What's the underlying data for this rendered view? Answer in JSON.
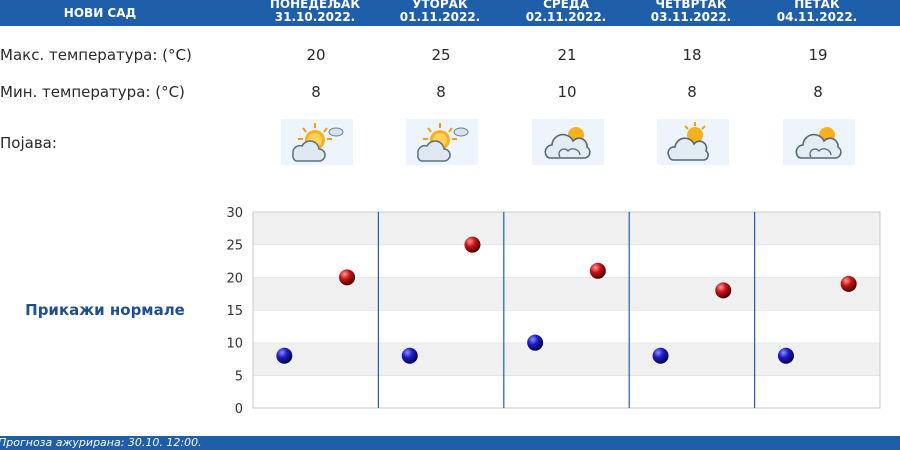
{
  "header": {
    "city": "НОВИ САД",
    "days": [
      {
        "name": "ПОНЕДЕЉАК",
        "date": "31.10.2022."
      },
      {
        "name": "УТОРАК",
        "date": "01.11.2022."
      },
      {
        "name": "СРЕДА",
        "date": "02.11.2022."
      },
      {
        "name": "ЧЕТВРТАК",
        "date": "03.11.2022."
      },
      {
        "name": "ПЕТАК",
        "date": "04.11.2022."
      }
    ]
  },
  "rows": {
    "max_label": "Макс. температура: (°C)",
    "min_label": "Мин. температура: (°C)",
    "phenomenon_label": "Појава:",
    "max": [
      "20",
      "25",
      "21",
      "18",
      "19"
    ],
    "min": [
      "8",
      "8",
      "10",
      "8",
      "8"
    ],
    "icons": [
      "sun-cloud-icon",
      "sun-cloud-icon",
      "cloud-sun-icon",
      "partly-cloudy-icon",
      "cloud-sun-icon"
    ]
  },
  "normals_label": "Прикажи нормале",
  "footer": {
    "updated_text": "Прогноза ажурирана:  30.10. 12:00."
  },
  "colors": {
    "header_blue": "#1f5ea8",
    "min_dot": "#1c1cc8",
    "max_dot": "#c81414",
    "divider": "#1f5ea8"
  },
  "chart_data": {
    "type": "scatter",
    "ylim": [
      0,
      30
    ],
    "yticks": [
      "0",
      "5",
      "10",
      "15",
      "20",
      "25",
      "30"
    ],
    "categories": [
      "31.10.2022.",
      "01.11.2022.",
      "02.11.2022.",
      "03.11.2022.",
      "04.11.2022."
    ],
    "series": [
      {
        "values": [
          8,
          8,
          10,
          8,
          8
        ]
      },
      {
        "values": [
          20,
          25,
          21,
          18,
          19
        ]
      }
    ]
  }
}
